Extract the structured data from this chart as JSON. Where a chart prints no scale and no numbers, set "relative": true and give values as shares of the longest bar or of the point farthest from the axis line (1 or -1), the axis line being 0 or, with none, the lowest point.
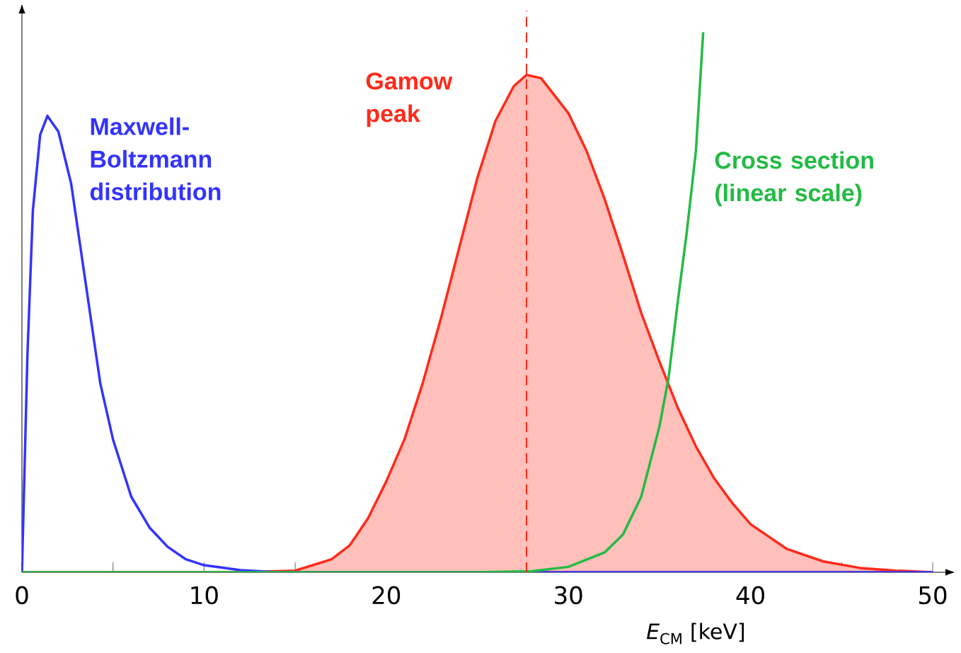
{
  "chart_data": {
    "type": "line",
    "relative": true,
    "xlabel": "*E*$_{CM}$ [keV]",
    "xlim": [
      0,
      50
    ],
    "xticks": [
      0,
      {
        "value": 5,
        "label": null
      },
      10,
      {
        "value": 15,
        "label": null
      },
      20,
      {
        "value": 25,
        "label": null
      },
      30,
      {
        "value": 35,
        "label": null
      },
      40,
      {
        "value": 45,
        "label": null
      },
      50
    ],
    "tick_labels": "x",
    "series": [
      {
        "name": "Maxwell-Boltzmann distribution",
        "color": "#3333ff",
        "x": [
          0,
          0.3,
          0.6,
          1.0,
          1.4,
          2.0,
          2.7,
          3.5,
          4.3,
          5.0,
          6.0,
          7.0,
          8.0,
          9.0,
          10.0,
          12.0,
          14.0,
          50
        ],
        "values": [
          0,
          0.4,
          0.67,
          0.81,
          0.845,
          0.816,
          0.72,
          0.535,
          0.35,
          0.246,
          0.14,
          0.083,
          0.047,
          0.024,
          0.013,
          0.004,
          0,
          0
        ]
      },
      {
        "name": "Gamow peak",
        "type": "area",
        "color": "#ff2a1a",
        "x": [
          0,
          12,
          15,
          17,
          18,
          19,
          20,
          21,
          22,
          23,
          24,
          25,
          26,
          27,
          27.7,
          28.5,
          30,
          31,
          32,
          33,
          34,
          35,
          36,
          37,
          38,
          39,
          40,
          42,
          44,
          46,
          48,
          50
        ],
        "values": [
          0,
          0,
          0.003,
          0.024,
          0.05,
          0.1,
          0.168,
          0.246,
          0.35,
          0.47,
          0.6,
          0.73,
          0.836,
          0.9,
          0.921,
          0.915,
          0.85,
          0.78,
          0.69,
          0.587,
          0.48,
          0.39,
          0.305,
          0.233,
          0.174,
          0.128,
          0.089,
          0.043,
          0.02,
          0.008,
          0.003,
          0
        ]
      },
      {
        "name": "Cross section (linear scale)",
        "color": "#22bb44",
        "x": [
          0,
          25,
          28,
          30,
          32,
          33,
          34,
          35,
          35.5,
          36,
          36.5,
          37,
          37.4
        ],
        "values": [
          0,
          0,
          0.002,
          0.01,
          0.037,
          0.07,
          0.14,
          0.27,
          0.36,
          0.5,
          0.63,
          0.78,
          1.0
        ]
      }
    ],
    "ref_lines": [
      {
        "axis": "x",
        "value": 27.7,
        "color": "#ff2a1a",
        "line_style": "dashed"
      }
    ]
  }
}
